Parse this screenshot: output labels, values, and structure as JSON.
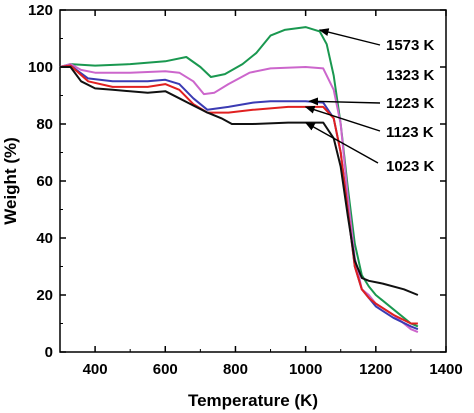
{
  "chart_data": {
    "type": "line",
    "title": "",
    "xlabel": "Temperature (K)",
    "ylabel": "Weight (%)",
    "xlim": [
      300,
      1400
    ],
    "ylim": [
      0,
      120
    ],
    "xticks": [
      400,
      600,
      800,
      1000,
      1200,
      1400
    ],
    "yticks": [
      0,
      20,
      40,
      60,
      80,
      100,
      120
    ],
    "grid": false,
    "legend": "annotated labels with arrows on the right",
    "series": [
      {
        "name": "1573 K",
        "color": "#1a9850",
        "points": [
          [
            300,
            100
          ],
          [
            330,
            101
          ],
          [
            400,
            100.5
          ],
          [
            500,
            101
          ],
          [
            600,
            102
          ],
          [
            660,
            103.5
          ],
          [
            700,
            100
          ],
          [
            730,
            96.5
          ],
          [
            770,
            97.5
          ],
          [
            820,
            101
          ],
          [
            860,
            105
          ],
          [
            900,
            111
          ],
          [
            940,
            113
          ],
          [
            1000,
            114
          ],
          [
            1040,
            112.5
          ],
          [
            1060,
            108
          ],
          [
            1080,
            97
          ],
          [
            1100,
            80
          ],
          [
            1120,
            58
          ],
          [
            1140,
            38
          ],
          [
            1160,
            27
          ],
          [
            1180,
            23
          ],
          [
            1200,
            20
          ],
          [
            1250,
            15
          ],
          [
            1300,
            10
          ],
          [
            1320,
            9
          ]
        ]
      },
      {
        "name": "1323 K",
        "color": "#cc66cc",
        "points": [
          [
            300,
            100
          ],
          [
            330,
            101
          ],
          [
            360,
            99
          ],
          [
            400,
            98
          ],
          [
            500,
            98
          ],
          [
            600,
            98.5
          ],
          [
            640,
            98
          ],
          [
            680,
            95
          ],
          [
            710,
            90.5
          ],
          [
            740,
            91
          ],
          [
            780,
            94
          ],
          [
            840,
            98
          ],
          [
            900,
            99.5
          ],
          [
            1000,
            100
          ],
          [
            1050,
            99.5
          ],
          [
            1080,
            92
          ],
          [
            1100,
            80
          ],
          [
            1120,
            55
          ],
          [
            1140,
            33
          ],
          [
            1160,
            22
          ],
          [
            1180,
            20
          ],
          [
            1200,
            17
          ],
          [
            1250,
            13
          ],
          [
            1300,
            8
          ],
          [
            1320,
            7
          ]
        ]
      },
      {
        "name": "1223 K",
        "color": "#3b3bb3",
        "points": [
          [
            300,
            100
          ],
          [
            330,
            100.5
          ],
          [
            380,
            96
          ],
          [
            450,
            95
          ],
          [
            550,
            95
          ],
          [
            600,
            95.5
          ],
          [
            640,
            94
          ],
          [
            680,
            89
          ],
          [
            720,
            85
          ],
          [
            780,
            86
          ],
          [
            850,
            87.5
          ],
          [
            900,
            88
          ],
          [
            1000,
            88
          ],
          [
            1050,
            87.5
          ],
          [
            1080,
            82
          ],
          [
            1100,
            70
          ],
          [
            1120,
            50
          ],
          [
            1140,
            30
          ],
          [
            1160,
            22
          ],
          [
            1180,
            19
          ],
          [
            1200,
            16
          ],
          [
            1250,
            12
          ],
          [
            1300,
            9
          ],
          [
            1320,
            8
          ]
        ]
      },
      {
        "name": "1123 K",
        "color": "#e02020",
        "points": [
          [
            300,
            100
          ],
          [
            330,
            100.5
          ],
          [
            380,
            95
          ],
          [
            450,
            93
          ],
          [
            550,
            93
          ],
          [
            600,
            94
          ],
          [
            640,
            92
          ],
          [
            680,
            87
          ],
          [
            720,
            84
          ],
          [
            780,
            84
          ],
          [
            850,
            85
          ],
          [
            950,
            86
          ],
          [
            1050,
            86
          ],
          [
            1080,
            82
          ],
          [
            1100,
            70
          ],
          [
            1120,
            50
          ],
          [
            1140,
            30
          ],
          [
            1160,
            22
          ],
          [
            1180,
            19
          ],
          [
            1200,
            17
          ],
          [
            1250,
            13
          ],
          [
            1300,
            10
          ],
          [
            1320,
            10
          ]
        ]
      },
      {
        "name": "1023 K",
        "color": "#111111",
        "points": [
          [
            300,
            100
          ],
          [
            330,
            100
          ],
          [
            360,
            95
          ],
          [
            400,
            92.5
          ],
          [
            450,
            92
          ],
          [
            550,
            91
          ],
          [
            600,
            91.5
          ],
          [
            640,
            89
          ],
          [
            680,
            86.5
          ],
          [
            720,
            84
          ],
          [
            760,
            82
          ],
          [
            790,
            80
          ],
          [
            850,
            80
          ],
          [
            950,
            80.5
          ],
          [
            1050,
            80.5
          ],
          [
            1080,
            75
          ],
          [
            1100,
            65
          ],
          [
            1120,
            48
          ],
          [
            1140,
            32
          ],
          [
            1160,
            26
          ],
          [
            1180,
            25
          ],
          [
            1220,
            24
          ],
          [
            1280,
            22
          ],
          [
            1320,
            20
          ]
        ]
      }
    ],
    "annotations": [
      {
        "series": "1573 K",
        "text": "1573 K",
        "arrow_to": [
          1040,
          113
        ]
      },
      {
        "series": "1323 K",
        "text": "1323 K",
        "arrow_to": null
      },
      {
        "series": "1223 K",
        "text": "1223 K",
        "arrow_to": [
          1010,
          88
        ]
      },
      {
        "series": "1123 K",
        "text": "1123 K",
        "arrow_to": [
          1000,
          86
        ]
      },
      {
        "series": "1023 K",
        "text": "1023 K",
        "arrow_to": [
          1000,
          80.5
        ]
      }
    ]
  }
}
